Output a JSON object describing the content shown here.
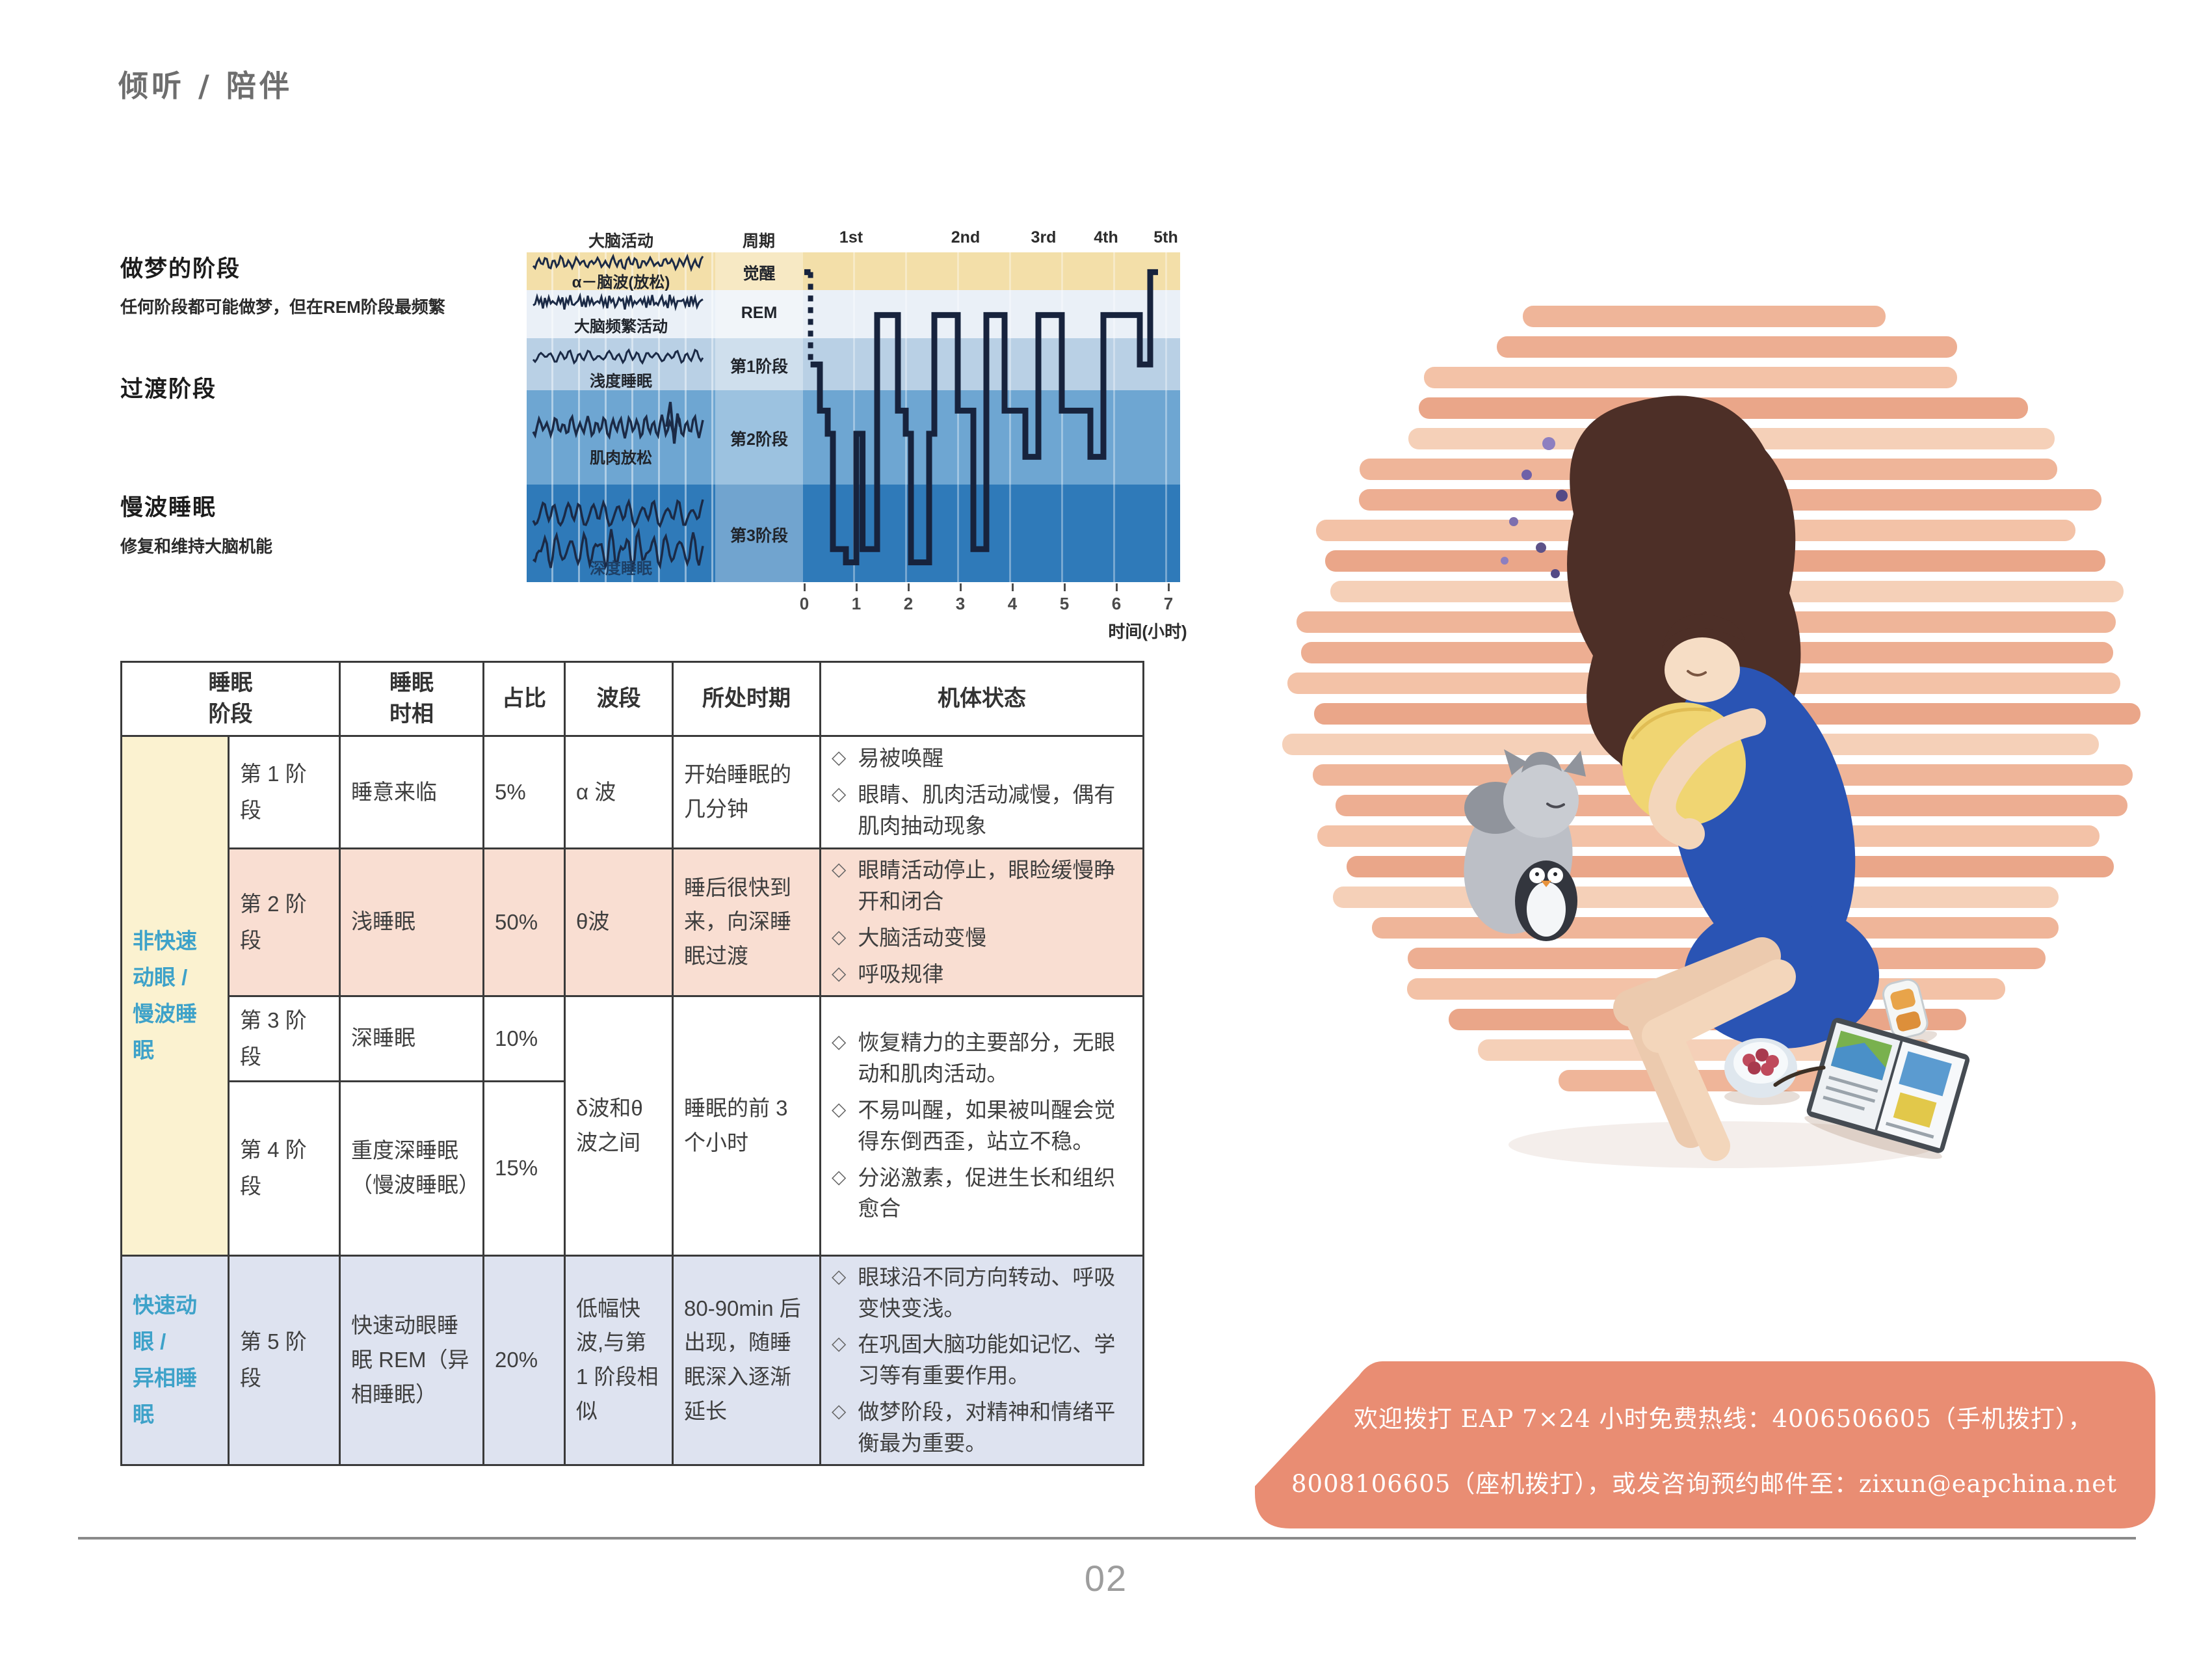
{
  "page": {
    "section_header": "倾听 / 陪伴",
    "page_number": "02"
  },
  "diagram": {
    "brain_activity_header": "大脑活动",
    "cycle_header": "周期",
    "cycles": [
      "1st",
      "2nd",
      "3rd",
      "4th",
      "5th"
    ],
    "notes": [
      {
        "title": "做梦的阶段",
        "subtitle": "任何阶段都可能做梦，但在REM阶段最频繁"
      },
      {
        "title": "过渡阶段",
        "subtitle": ""
      },
      {
        "title": "慢波睡眠",
        "subtitle": "修复和维持大脑机能"
      }
    ],
    "bands": [
      {
        "stage_label": "觉醒",
        "wave_label": "α－脑波(放松)",
        "color": "#f3dfa9"
      },
      {
        "stage_label": "REM",
        "wave_label": "大脑频繁活动",
        "color": "#eaf0f7"
      },
      {
        "stage_label": "第1阶段",
        "wave_label": "浅度睡眠",
        "color": "#b9d0e5"
      },
      {
        "stage_label": "第2阶段",
        "wave_label": "肌肉放松",
        "color": "#6ea6d2"
      },
      {
        "stage_label": "第3阶段",
        "wave_label": "深度睡眠",
        "color": "#2f7ab9"
      }
    ],
    "x_ticks": [
      "0",
      "1",
      "2",
      "3",
      "4",
      "5",
      "6",
      "7"
    ],
    "x_axis_label": "时间(小时)"
  },
  "chart_data": {
    "type": "line",
    "x_label": "时间(小时)",
    "x_range": [
      0,
      7
    ],
    "y_categories": [
      "觉醒",
      "REM",
      "第1阶段",
      "第2阶段",
      "第3阶段"
    ],
    "cycle_labels": [
      "1st",
      "2nd",
      "3rd",
      "4th",
      "5th"
    ],
    "line_color": "#17233d",
    "pre_steps": [
      [
        0,
        6
      ],
      [
        0.12,
        6
      ]
    ],
    "dashed_descent": {
      "hour": 0.12,
      "from_level": 6,
      "to_level": 34
    },
    "steps_hour_level": [
      [
        0.12,
        34
      ],
      [
        0.3,
        34
      ],
      [
        0.3,
        48
      ],
      [
        0.45,
        48
      ],
      [
        0.45,
        55
      ],
      [
        0.55,
        55
      ],
      [
        0.55,
        90
      ],
      [
        0.8,
        90
      ],
      [
        0.8,
        94
      ],
      [
        1.0,
        94
      ],
      [
        1.0,
        55
      ],
      [
        1.12,
        55
      ],
      [
        1.12,
        90
      ],
      [
        1.4,
        90
      ],
      [
        1.4,
        19
      ],
      [
        1.8,
        19
      ],
      [
        1.8,
        48
      ],
      [
        1.95,
        48
      ],
      [
        1.95,
        55
      ],
      [
        2.05,
        55
      ],
      [
        2.05,
        94
      ],
      [
        2.4,
        94
      ],
      [
        2.4,
        55
      ],
      [
        2.5,
        55
      ],
      [
        2.5,
        19
      ],
      [
        2.95,
        19
      ],
      [
        2.95,
        48
      ],
      [
        3.25,
        48
      ],
      [
        3.25,
        90
      ],
      [
        3.5,
        90
      ],
      [
        3.5,
        19
      ],
      [
        3.85,
        19
      ],
      [
        3.85,
        48
      ],
      [
        4.25,
        48
      ],
      [
        4.25,
        62
      ],
      [
        4.5,
        62
      ],
      [
        4.5,
        19
      ],
      [
        4.95,
        19
      ],
      [
        4.95,
        48
      ],
      [
        5.5,
        48
      ],
      [
        5.5,
        62
      ],
      [
        5.75,
        62
      ],
      [
        5.75,
        19
      ],
      [
        6.45,
        19
      ],
      [
        6.45,
        34
      ],
      [
        6.65,
        34
      ],
      [
        6.65,
        6
      ],
      [
        6.8,
        6
      ]
    ],
    "level_scale_note": "0 = 觉醒（浅），100 = 最深睡眠"
  },
  "table": {
    "headers": {
      "stage_group": "睡眠\n阶段",
      "phase": "睡眠\n时相",
      "proportion": "占比",
      "wave": "波段",
      "period": "所处时期",
      "body_state": "机体状态"
    },
    "bullet_glyph": "◇",
    "groups": [
      {
        "label": "非快速\n动眼 /\n慢波睡\n眠"
      },
      {
        "label": "快速动\n眼 /\n异相睡\n眠"
      }
    ],
    "rows": [
      {
        "stage": "第 1 阶\n段",
        "phase": "睡意来临",
        "proportion": "5%",
        "wave": "α 波",
        "period": "开始睡眠的几分钟",
        "states": [
          "易被唤醒",
          "眼睛、肌肉活动减慢，偶有肌肉抽动现象"
        ]
      },
      {
        "stage": "第 2 阶\n段",
        "phase": "浅睡眠",
        "proportion": "50%",
        "wave": "θ波",
        "period": "睡后很快到来，向深睡眠过渡",
        "states": [
          "眼睛活动停止，眼睑缓慢睁开和闭合",
          "大脑活动变慢",
          "呼吸规律"
        ]
      },
      {
        "stage": "第 3 阶\n段",
        "phase": "深睡眠",
        "proportion": "10%"
      },
      {
        "stage": "第 4 阶\n段",
        "phase": "重度深睡眠（慢波睡眠）",
        "proportion": "15%",
        "wave": "δ波和θ波之间",
        "period": "睡眠的前 3 个小时",
        "states": [
          "恢复精力的主要部分，无眼动和肌肉活动。",
          "不易叫醒，如果被叫醒会觉得东倒西歪，站立不稳。",
          "分泌激素，促进生长和组织愈合"
        ]
      },
      {
        "stage": "第 5 阶\n段",
        "phase": "快速动眼睡眠 REM（异相睡眠）",
        "proportion": "20%",
        "wave": "低幅快波,与第 1 阶段相似",
        "period": "80-90min 后出现，随睡眠深入逐渐延长",
        "states": [
          "眼球沿不同方向转动、呼吸变快变浅。",
          "在巩固大脑功能如记忆、学习等有重要作用。",
          "做梦阶段，对精神和情绪平衡最为重要。"
        ]
      }
    ]
  },
  "banner": {
    "line1": "欢迎拨打 EAP 7×24 小时免费热线：4006506605（手机拨打），",
    "line2": "8008106605（座机拨打），或发咨询预约邮件至：zixun@eapchina.net",
    "background": "#e98d73"
  },
  "illustration": {
    "description": "水彩插画：女孩抱着黄色抱枕侧睡在木地板上，旁边有抱企鹅玩偶的猫、一碗浆果、饮料和摊开的书",
    "floor_stripe_colors": [
      "#eeb193",
      "#ecaa8c",
      "#f2bfa2",
      "#e9a183",
      "#f4cdb4"
    ]
  }
}
